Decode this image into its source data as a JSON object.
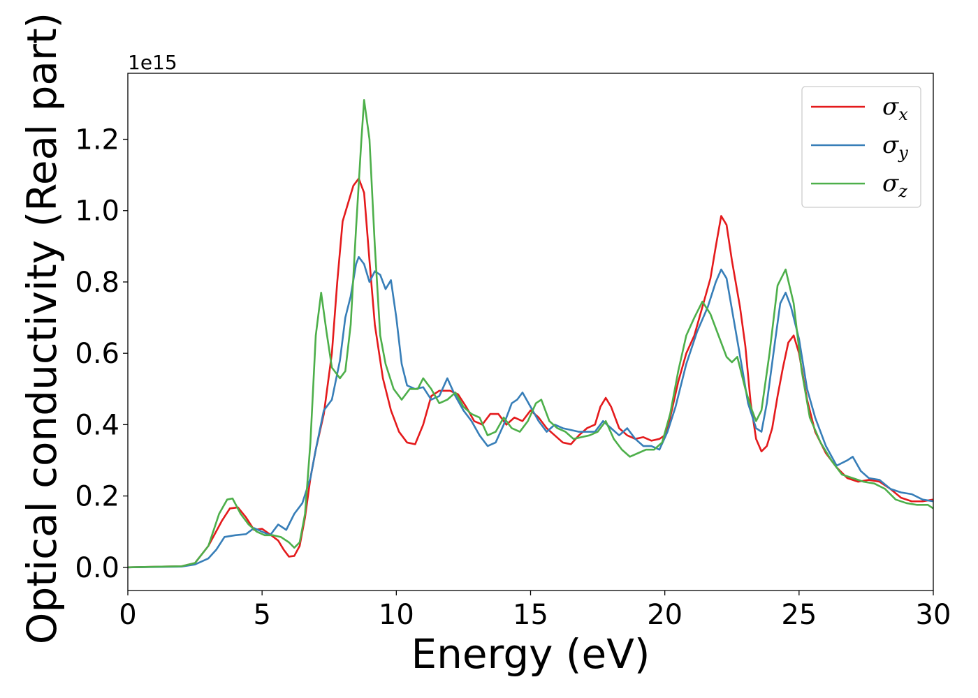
{
  "chart_data": {
    "type": "line",
    "title": "",
    "xlabel": "Energy (eV)",
    "ylabel": "Optical conductivity (Real part)",
    "y_offset_label": "1e15",
    "xlim": [
      0,
      30
    ],
    "ylim": [
      -0.065,
      1.385
    ],
    "x_ticks": [
      0,
      5,
      10,
      15,
      20,
      25,
      30
    ],
    "x_tick_labels": [
      "0",
      "5",
      "10",
      "15",
      "20",
      "25",
      "30"
    ],
    "y_ticks": [
      0.0,
      0.2,
      0.4,
      0.6,
      0.8,
      1.0,
      1.2
    ],
    "y_tick_labels": [
      "0.0",
      "0.2",
      "0.4",
      "0.6",
      "0.8",
      "1.0",
      "1.2"
    ],
    "grid": false,
    "legend_position": "top-right",
    "series": [
      {
        "name": "σx",
        "symbol": "σ",
        "subscript": "x",
        "color": "#e41a1c",
        "points": [
          [
            0,
            0
          ],
          [
            2,
            0.003
          ],
          [
            2.5,
            0.012
          ],
          [
            3,
            0.06
          ],
          [
            3.5,
            0.13
          ],
          [
            3.8,
            0.165
          ],
          [
            4.1,
            0.168
          ],
          [
            4.4,
            0.14
          ],
          [
            4.7,
            0.105
          ],
          [
            5,
            0.108
          ],
          [
            5.3,
            0.092
          ],
          [
            5.6,
            0.075
          ],
          [
            5.8,
            0.05
          ],
          [
            6,
            0.03
          ],
          [
            6.2,
            0.032
          ],
          [
            6.4,
            0.06
          ],
          [
            6.6,
            0.14
          ],
          [
            6.8,
            0.25
          ],
          [
            7,
            0.33
          ],
          [
            7.3,
            0.43
          ],
          [
            7.6,
            0.6
          ],
          [
            7.8,
            0.8
          ],
          [
            8,
            0.97
          ],
          [
            8.2,
            1.02
          ],
          [
            8.4,
            1.07
          ],
          [
            8.6,
            1.09
          ],
          [
            8.8,
            1.05
          ],
          [
            9,
            0.86
          ],
          [
            9.2,
            0.68
          ],
          [
            9.5,
            0.53
          ],
          [
            9.8,
            0.44
          ],
          [
            10.1,
            0.38
          ],
          [
            10.4,
            0.35
          ],
          [
            10.7,
            0.345
          ],
          [
            11,
            0.4
          ],
          [
            11.3,
            0.48
          ],
          [
            11.6,
            0.495
          ],
          [
            12,
            0.495
          ],
          [
            12.3,
            0.485
          ],
          [
            12.6,
            0.45
          ],
          [
            12.9,
            0.41
          ],
          [
            13.2,
            0.4
          ],
          [
            13.5,
            0.43
          ],
          [
            13.8,
            0.43
          ],
          [
            14.1,
            0.4
          ],
          [
            14.4,
            0.42
          ],
          [
            14.7,
            0.41
          ],
          [
            15,
            0.44
          ],
          [
            15.3,
            0.42
          ],
          [
            15.6,
            0.39
          ],
          [
            15.9,
            0.37
          ],
          [
            16.2,
            0.35
          ],
          [
            16.5,
            0.345
          ],
          [
            16.8,
            0.37
          ],
          [
            17.1,
            0.39
          ],
          [
            17.4,
            0.4
          ],
          [
            17.6,
            0.45
          ],
          [
            17.8,
            0.475
          ],
          [
            18,
            0.45
          ],
          [
            18.3,
            0.39
          ],
          [
            18.6,
            0.37
          ],
          [
            18.9,
            0.36
          ],
          [
            19.2,
            0.365
          ],
          [
            19.5,
            0.355
          ],
          [
            19.8,
            0.36
          ],
          [
            20,
            0.37
          ],
          [
            20.2,
            0.42
          ],
          [
            20.5,
            0.52
          ],
          [
            20.8,
            0.6
          ],
          [
            21.1,
            0.65
          ],
          [
            21.4,
            0.73
          ],
          [
            21.7,
            0.81
          ],
          [
            21.9,
            0.9
          ],
          [
            22.1,
            0.985
          ],
          [
            22.3,
            0.96
          ],
          [
            22.5,
            0.86
          ],
          [
            22.8,
            0.73
          ],
          [
            23,
            0.62
          ],
          [
            23.2,
            0.46
          ],
          [
            23.4,
            0.36
          ],
          [
            23.6,
            0.325
          ],
          [
            23.8,
            0.34
          ],
          [
            24,
            0.39
          ],
          [
            24.2,
            0.48
          ],
          [
            24.4,
            0.56
          ],
          [
            24.6,
            0.63
          ],
          [
            24.8,
            0.65
          ],
          [
            25,
            0.6
          ],
          [
            25.3,
            0.47
          ],
          [
            25.6,
            0.38
          ],
          [
            26,
            0.32
          ],
          [
            26.4,
            0.28
          ],
          [
            26.8,
            0.25
          ],
          [
            27.2,
            0.24
          ],
          [
            27.6,
            0.245
          ],
          [
            28,
            0.24
          ],
          [
            28.4,
            0.22
          ],
          [
            28.8,
            0.195
          ],
          [
            29.2,
            0.185
          ],
          [
            29.6,
            0.185
          ],
          [
            30,
            0.19
          ]
        ]
      },
      {
        "name": "σy",
        "symbol": "σ",
        "subscript": "y",
        "color": "#377eb8",
        "points": [
          [
            0,
            0
          ],
          [
            2,
            0.002
          ],
          [
            2.5,
            0.008
          ],
          [
            3,
            0.025
          ],
          [
            3.3,
            0.05
          ],
          [
            3.6,
            0.085
          ],
          [
            4,
            0.09
          ],
          [
            4.4,
            0.093
          ],
          [
            4.7,
            0.11
          ],
          [
            5,
            0.1
          ],
          [
            5.3,
            0.09
          ],
          [
            5.6,
            0.12
          ],
          [
            5.9,
            0.105
          ],
          [
            6.2,
            0.15
          ],
          [
            6.5,
            0.18
          ],
          [
            6.8,
            0.25
          ],
          [
            7,
            0.33
          ],
          [
            7.3,
            0.44
          ],
          [
            7.6,
            0.47
          ],
          [
            7.9,
            0.58
          ],
          [
            8.1,
            0.7
          ],
          [
            8.3,
            0.76
          ],
          [
            8.5,
            0.85
          ],
          [
            8.6,
            0.87
          ],
          [
            8.8,
            0.85
          ],
          [
            9,
            0.8
          ],
          [
            9.2,
            0.83
          ],
          [
            9.4,
            0.82
          ],
          [
            9.6,
            0.78
          ],
          [
            9.8,
            0.805
          ],
          [
            10,
            0.7
          ],
          [
            10.2,
            0.57
          ],
          [
            10.4,
            0.51
          ],
          [
            10.7,
            0.5
          ],
          [
            11,
            0.505
          ],
          [
            11.3,
            0.47
          ],
          [
            11.6,
            0.48
          ],
          [
            11.9,
            0.53
          ],
          [
            12.2,
            0.48
          ],
          [
            12.5,
            0.44
          ],
          [
            12.8,
            0.41
          ],
          [
            13.1,
            0.37
          ],
          [
            13.4,
            0.34
          ],
          [
            13.7,
            0.35
          ],
          [
            14,
            0.4
          ],
          [
            14.3,
            0.46
          ],
          [
            14.5,
            0.47
          ],
          [
            14.7,
            0.49
          ],
          [
            15,
            0.45
          ],
          [
            15.3,
            0.41
          ],
          [
            15.6,
            0.38
          ],
          [
            15.9,
            0.4
          ],
          [
            16.2,
            0.39
          ],
          [
            16.5,
            0.385
          ],
          [
            16.8,
            0.38
          ],
          [
            17.1,
            0.38
          ],
          [
            17.4,
            0.38
          ],
          [
            17.7,
            0.41
          ],
          [
            18,
            0.39
          ],
          [
            18.3,
            0.37
          ],
          [
            18.6,
            0.39
          ],
          [
            18.9,
            0.36
          ],
          [
            19.2,
            0.34
          ],
          [
            19.5,
            0.34
          ],
          [
            19.8,
            0.33
          ],
          [
            20.1,
            0.38
          ],
          [
            20.4,
            0.45
          ],
          [
            20.8,
            0.57
          ],
          [
            21.2,
            0.66
          ],
          [
            21.6,
            0.73
          ],
          [
            21.9,
            0.8
          ],
          [
            22.1,
            0.835
          ],
          [
            22.3,
            0.81
          ],
          [
            22.6,
            0.68
          ],
          [
            22.9,
            0.55
          ],
          [
            23.1,
            0.46
          ],
          [
            23.4,
            0.39
          ],
          [
            23.6,
            0.38
          ],
          [
            23.8,
            0.46
          ],
          [
            24.1,
            0.63
          ],
          [
            24.3,
            0.74
          ],
          [
            24.5,
            0.77
          ],
          [
            24.7,
            0.73
          ],
          [
            25,
            0.64
          ],
          [
            25.3,
            0.5
          ],
          [
            25.6,
            0.42
          ],
          [
            26,
            0.34
          ],
          [
            26.4,
            0.285
          ],
          [
            26.8,
            0.3
          ],
          [
            27,
            0.31
          ],
          [
            27.3,
            0.27
          ],
          [
            27.6,
            0.25
          ],
          [
            28,
            0.245
          ],
          [
            28.4,
            0.22
          ],
          [
            28.8,
            0.21
          ],
          [
            29.2,
            0.205
          ],
          [
            29.6,
            0.19
          ],
          [
            30,
            0.185
          ]
        ]
      },
      {
        "name": "σz",
        "symbol": "σ",
        "subscript": "z",
        "color": "#4daf4a",
        "points": [
          [
            0,
            0
          ],
          [
            2,
            0.003
          ],
          [
            2.5,
            0.012
          ],
          [
            3,
            0.06
          ],
          [
            3.4,
            0.15
          ],
          [
            3.7,
            0.19
          ],
          [
            3.9,
            0.193
          ],
          [
            4.2,
            0.15
          ],
          [
            4.5,
            0.12
          ],
          [
            4.8,
            0.1
          ],
          [
            5.1,
            0.09
          ],
          [
            5.4,
            0.09
          ],
          [
            5.7,
            0.085
          ],
          [
            6,
            0.07
          ],
          [
            6.2,
            0.055
          ],
          [
            6.4,
            0.07
          ],
          [
            6.6,
            0.15
          ],
          [
            6.8,
            0.35
          ],
          [
            7,
            0.65
          ],
          [
            7.2,
            0.77
          ],
          [
            7.4,
            0.66
          ],
          [
            7.6,
            0.56
          ],
          [
            7.9,
            0.53
          ],
          [
            8.1,
            0.55
          ],
          [
            8.3,
            0.68
          ],
          [
            8.5,
            0.95
          ],
          [
            8.7,
            1.2
          ],
          [
            8.8,
            1.31
          ],
          [
            9,
            1.2
          ],
          [
            9.2,
            0.9
          ],
          [
            9.4,
            0.65
          ],
          [
            9.6,
            0.57
          ],
          [
            9.9,
            0.5
          ],
          [
            10.2,
            0.47
          ],
          [
            10.5,
            0.5
          ],
          [
            10.8,
            0.5
          ],
          [
            11,
            0.53
          ],
          [
            11.3,
            0.5
          ],
          [
            11.6,
            0.46
          ],
          [
            11.9,
            0.47
          ],
          [
            12.2,
            0.49
          ],
          [
            12.5,
            0.45
          ],
          [
            12.8,
            0.43
          ],
          [
            13.1,
            0.42
          ],
          [
            13.4,
            0.37
          ],
          [
            13.7,
            0.38
          ],
          [
            14,
            0.42
          ],
          [
            14.3,
            0.39
          ],
          [
            14.6,
            0.38
          ],
          [
            14.9,
            0.41
          ],
          [
            15.2,
            0.46
          ],
          [
            15.4,
            0.47
          ],
          [
            15.7,
            0.41
          ],
          [
            16,
            0.39
          ],
          [
            16.3,
            0.38
          ],
          [
            16.6,
            0.36
          ],
          [
            16.9,
            0.365
          ],
          [
            17.2,
            0.37
          ],
          [
            17.5,
            0.38
          ],
          [
            17.8,
            0.41
          ],
          [
            18.1,
            0.36
          ],
          [
            18.4,
            0.33
          ],
          [
            18.7,
            0.31
          ],
          [
            19,
            0.32
          ],
          [
            19.3,
            0.33
          ],
          [
            19.6,
            0.33
          ],
          [
            19.9,
            0.35
          ],
          [
            20.2,
            0.43
          ],
          [
            20.5,
            0.55
          ],
          [
            20.8,
            0.65
          ],
          [
            21.1,
            0.7
          ],
          [
            21.4,
            0.745
          ],
          [
            21.7,
            0.71
          ],
          [
            22,
            0.65
          ],
          [
            22.3,
            0.59
          ],
          [
            22.5,
            0.575
          ],
          [
            22.7,
            0.59
          ],
          [
            23,
            0.5
          ],
          [
            23.2,
            0.45
          ],
          [
            23.4,
            0.41
          ],
          [
            23.6,
            0.44
          ],
          [
            23.9,
            0.6
          ],
          [
            24.2,
            0.79
          ],
          [
            24.5,
            0.835
          ],
          [
            24.8,
            0.74
          ],
          [
            25.1,
            0.55
          ],
          [
            25.4,
            0.42
          ],
          [
            25.8,
            0.35
          ],
          [
            26.2,
            0.3
          ],
          [
            26.6,
            0.26
          ],
          [
            27,
            0.25
          ],
          [
            27.4,
            0.24
          ],
          [
            27.8,
            0.235
          ],
          [
            28.2,
            0.22
          ],
          [
            28.6,
            0.19
          ],
          [
            29,
            0.18
          ],
          [
            29.4,
            0.175
          ],
          [
            29.8,
            0.175
          ],
          [
            30,
            0.165
          ]
        ]
      }
    ]
  }
}
